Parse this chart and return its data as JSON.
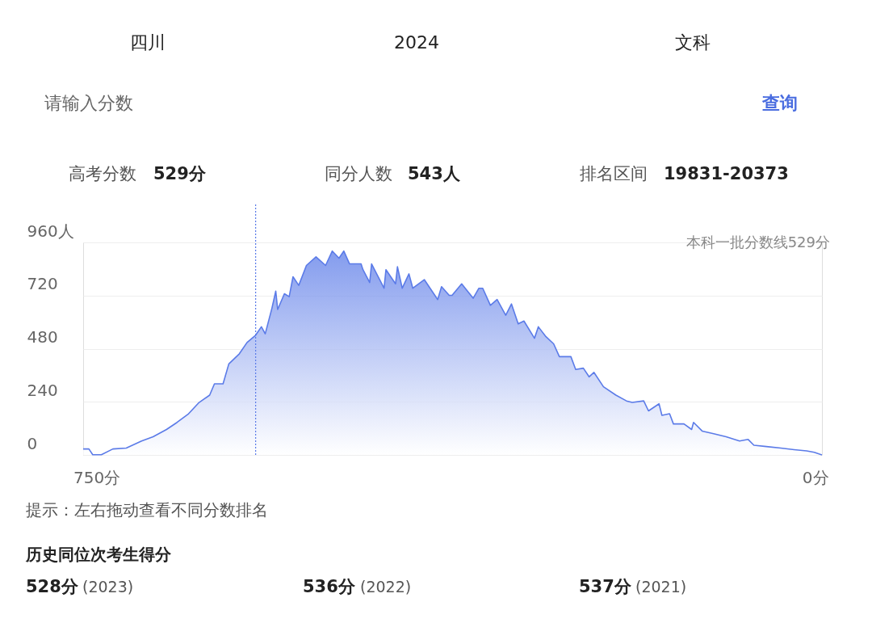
{
  "chart_data": {
    "type": "area",
    "x": [
      764,
      758,
      754,
      745,
      733,
      719,
      703,
      691,
      677,
      666,
      654,
      643,
      632,
      627,
      618,
      612,
      601,
      593,
      584,
      578,
      574,
      567,
      563,
      561,
      554,
      549,
      545,
      539,
      531,
      521,
      511,
      504,
      497,
      492,
      486,
      474,
      472,
      465,
      463,
      450,
      448,
      438,
      436,
      431,
      424,
      420,
      408,
      394,
      390,
      382,
      379,
      369,
      357,
      351,
      347,
      339,
      332,
      323,
      317,
      310,
      304,
      293,
      289,
      281,
      273,
      267,
      255,
      250,
      242,
      236,
      231,
      221,
      208,
      197,
      191,
      179,
      174,
      163,
      160,
      152,
      148,
      137,
      129,
      127,
      118,
      106,
      93,
      79,
      70,
      64,
      51,
      36,
      22,
      9,
      1,
      -7
    ],
    "series": [
      {
        "color": "#5b7be8",
        "values": [
          27,
          27,
          1,
          1,
          27,
          31,
          63,
          82,
          115,
          147,
          186,
          237,
          270,
          321,
          321,
          411,
          457,
          508,
          541,
          579,
          547,
          663,
          740,
          657,
          728,
          715,
          805,
          766,
          856,
          895,
          856,
          921,
          889,
          921,
          863,
          863,
          837,
          779,
          863,
          753,
          837,
          773,
          850,
          753,
          818,
          753,
          792,
          702,
          760,
          721,
          721,
          773,
          708,
          753,
          753,
          676,
          702,
          631,
          682,
          592,
          605,
          527,
          579,
          534,
          502,
          444,
          444,
          386,
          392,
          353,
          373,
          308,
          270,
          244,
          237,
          244,
          199,
          231,
          179,
          186,
          140,
          140,
          115,
          147,
          108,
          96,
          82,
          63,
          70,
          44,
          38,
          31,
          24,
          18,
          12,
          0
        ]
      }
    ],
    "xlim": [
      764,
      -7
    ],
    "xticks": [
      {
        "value": 750,
        "label": "750分"
      },
      {
        "value": 0,
        "label": "0分"
      }
    ],
    "ylim": [
      0,
      960
    ],
    "yticks": [
      0,
      240,
      480,
      720,
      {
        "value": 960,
        "label": "960人"
      }
    ],
    "grid": "y",
    "ref_lines": [
      {
        "axis": "x",
        "value": 584,
        "line_style": "dotted",
        "color": "#5b7be8"
      }
    ],
    "annotations": [
      "四川",
      "2024",
      "文科",
      "请输入分数",
      "查询",
      "高考分数",
      "529分",
      "同分人数",
      "543人",
      "排名区间",
      "19831-20373",
      "本科一批分数线529分",
      "提示：左右拖动查看不同分数排名",
      "历史同位次考生得分",
      "528分",
      "(2023)",
      "536分",
      "(2022)",
      "537分",
      "(2021)"
    ]
  }
}
